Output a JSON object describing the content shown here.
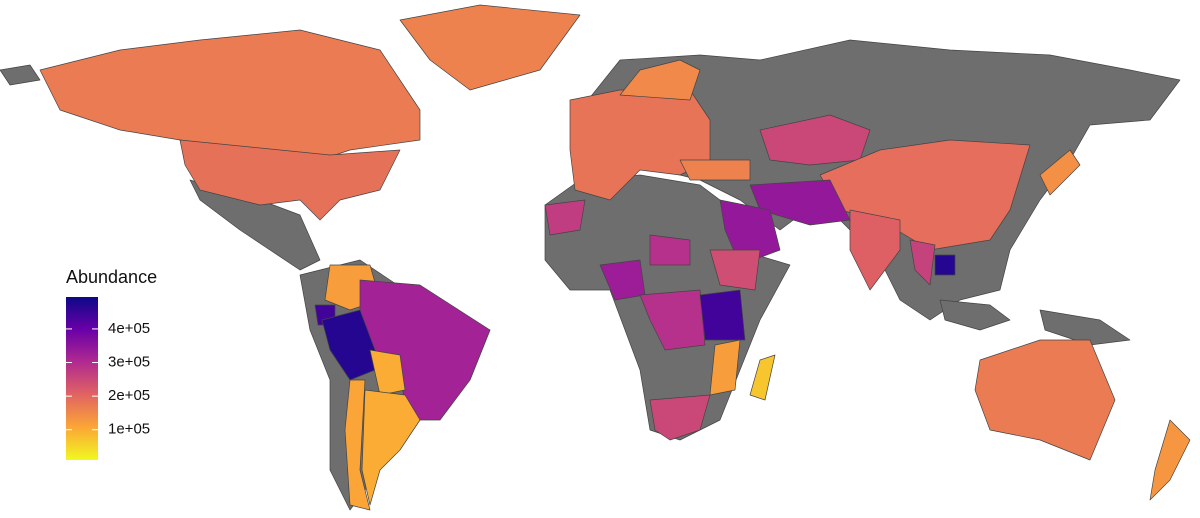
{
  "chart_data": {
    "type": "choropleth",
    "values": [
      170000,
      160000,
      185000,
      120000,
      440000,
      470000,
      320000,
      100000,
      110000,
      100000,
      180000,
      150000,
      160000,
      250000,
      190000,
      210000,
      340000,
      340000,
      260000,
      470000,
      140000,
      170000,
      130000,
      330000,
      290000,
      290000,
      240000,
      440000,
      120000,
      250000,
      70000,
      270000
    ],
    "missing_color": "#6e6e6e",
    "legend": {
      "title": "Abundance",
      "lim": [
        10000,
        495000
      ],
      "ticks": [
        {
          "value": 100000,
          "label": "1e+05"
        },
        {
          "value": 200000,
          "label": "2e+05"
        },
        {
          "value": 300000,
          "label": "3e+05"
        },
        {
          "value": 400000,
          "label": "4e+05"
        }
      ],
      "colorscale": [
        "#f0f921",
        "#fca636",
        "#e16462",
        "#b12a90",
        "#6a00a8",
        "#0d0887"
      ]
    }
  }
}
